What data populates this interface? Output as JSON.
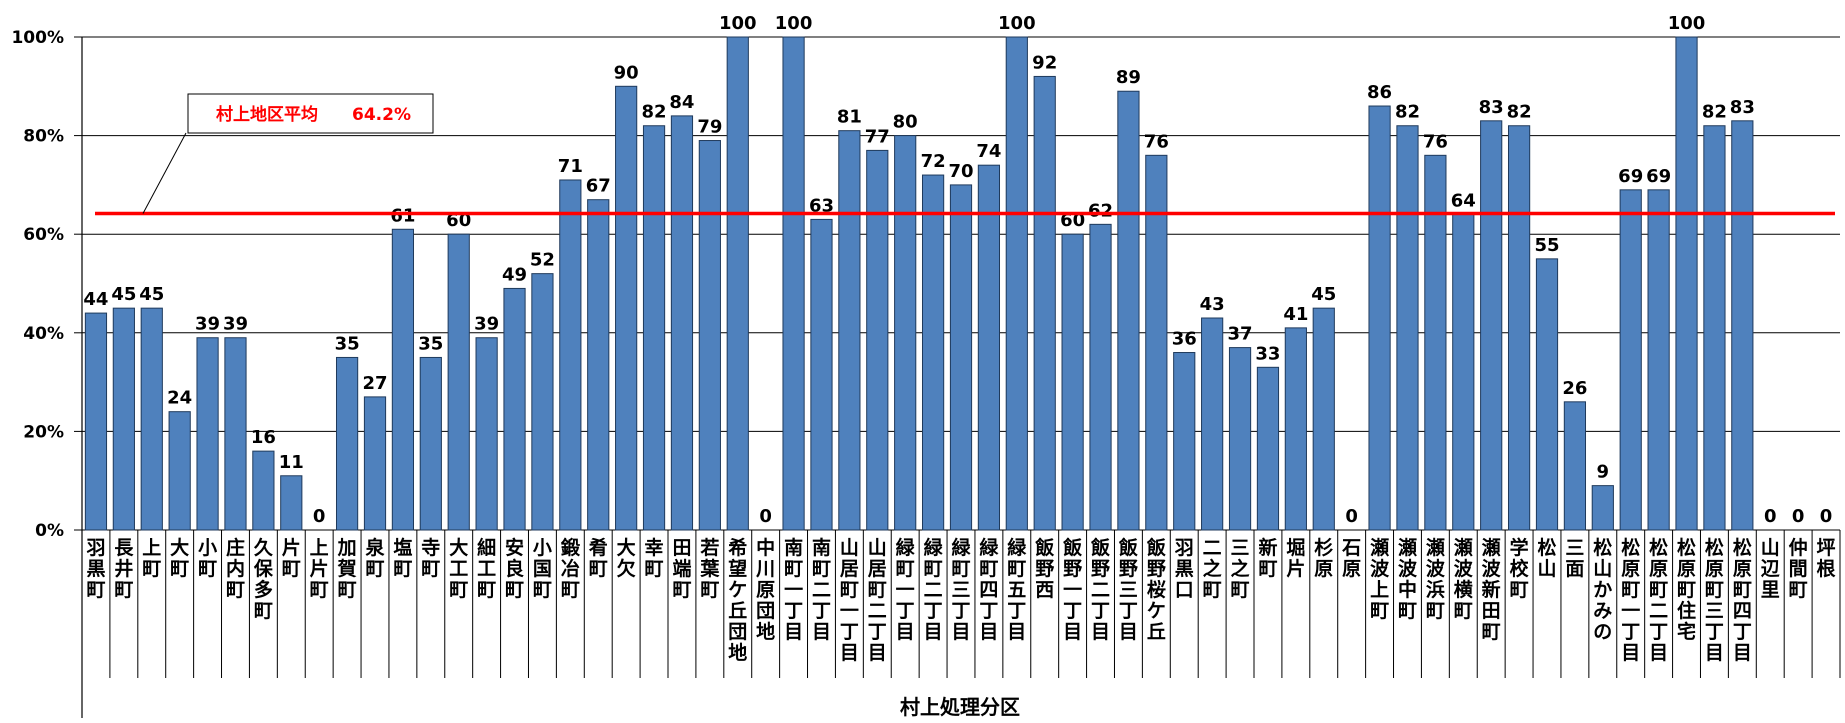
{
  "chart_data": {
    "type": "bar",
    "xlabel": "村上処理分区",
    "ylabel": "",
    "ylim": [
      0,
      100
    ],
    "yticks": [
      "0%",
      "20%",
      "40%",
      "60%",
      "80%",
      "100%"
    ],
    "grid": true,
    "bar_color": "#4f81bd",
    "average_line": {
      "label": "村上地区平均",
      "value_text": "64.2%",
      "value": 64.2,
      "color": "#ff0000"
    },
    "categories": [
      "羽黒町",
      "長井町",
      "上町",
      "大町",
      "小町",
      "庄内町",
      "久保多町",
      "片町",
      "上片町",
      "加賀町",
      "泉町",
      "塩町",
      "寺町",
      "大工町",
      "細工町",
      "安良町",
      "小国町",
      "鍛冶町",
      "肴町",
      "大欠",
      "幸町",
      "田端町",
      "若葉町",
      "希望ケ丘団地",
      "中川原団地",
      "南町一丁目",
      "南町二丁目",
      "山居町一丁目",
      "山居町二丁目",
      "緑町一丁目",
      "緑町二丁目",
      "緑町三丁目",
      "緑町四丁目",
      "緑町五丁目",
      "飯野西",
      "飯野一丁目",
      "飯野二丁目",
      "飯野三丁目",
      "飯野桜ケ丘",
      "羽黒口",
      "二之町",
      "三之町",
      "新町",
      "堀片",
      "杉原",
      "石原",
      "瀬波上町",
      "瀬波中町",
      "瀬波浜町",
      "瀬波横町",
      "瀬波新田町",
      "学校町",
      "松山",
      "三面",
      "松山かみの",
      "松原町一丁目",
      "松原町二丁目",
      "松原町住宅",
      "松原町三丁目",
      "松原町四丁目",
      "山辺里",
      "仲間町",
      "坪根"
    ],
    "values": [
      44,
      45,
      45,
      24,
      39,
      39,
      16,
      11,
      0,
      35,
      27,
      61,
      35,
      60,
      39,
      49,
      52,
      71,
      67,
      90,
      82,
      84,
      79,
      100,
      0,
      100,
      63,
      81,
      77,
      80,
      72,
      70,
      74,
      100,
      92,
      60,
      62,
      89,
      76,
      36,
      43,
      37,
      33,
      41,
      45,
      0,
      86,
      82,
      76,
      64,
      83,
      82,
      55,
      26,
      9,
      69,
      69,
      100,
      82,
      83,
      0,
      0,
      0
    ],
    "label_values": [
      44,
      45,
      45,
      24,
      39,
      39,
      16,
      11,
      0,
      35,
      27,
      61,
      35,
      60,
      39,
      49,
      52,
      71,
      67,
      90,
      82,
      84,
      79,
      100,
      0,
      100,
      63,
      81,
      77,
      80,
      72,
      70,
      74,
      100,
      92,
      60,
      62,
      89,
      76,
      36,
      43,
      37,
      33,
      41,
      45,
      0,
      86,
      82,
      76,
      64,
      83,
      82,
      55,
      26,
      9,
      69,
      69,
      100,
      82,
      83,
      0,
      0,
      0
    ]
  }
}
